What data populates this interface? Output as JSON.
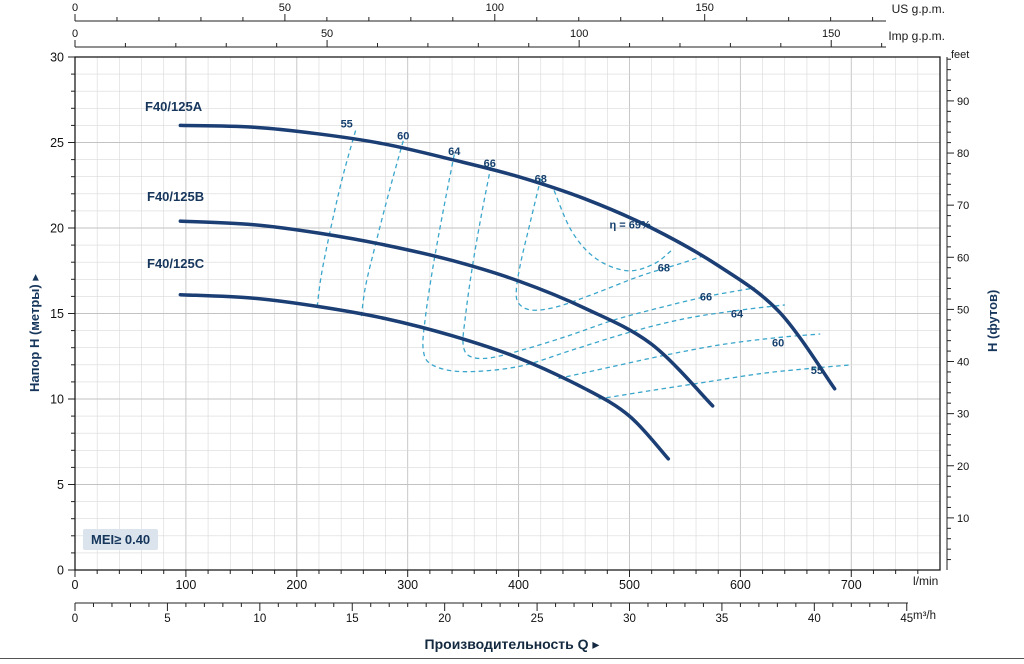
{
  "chart_data": {
    "type": "line",
    "title": "",
    "xlabel": "Производительность Q ▸",
    "mei_label": "MEI≥ 0.40",
    "x_unit": "l/min",
    "y_unit": "m",
    "x_range": [
      0,
      780
    ],
    "y_range": [
      0,
      30
    ],
    "grid": "on",
    "axes": {
      "us_gpm": {
        "unit": "US g.p.m.",
        "ticks": [
          0,
          50,
          100,
          150
        ],
        "minor_step": 10,
        "to_lmin": 3.7854
      },
      "imp_gpm": {
        "unit": "Imp g.p.m.",
        "ticks": [
          0,
          50,
          100,
          150
        ],
        "minor_step": 10,
        "to_lmin": 4.5461
      },
      "lmin": {
        "unit": "l/min",
        "ticks": [
          0,
          100,
          200,
          300,
          400,
          500,
          600,
          700
        ],
        "minor_step": 20
      },
      "m3h": {
        "unit": "m³/h",
        "ticks": [
          0,
          5,
          10,
          15,
          20,
          25,
          30,
          35,
          40,
          45
        ],
        "minor_step": 1,
        "to_lmin": 16.667
      },
      "h_m": {
        "title": "Напор H (метры) ▸",
        "ticks": [
          0,
          5,
          10,
          15,
          20,
          25,
          30
        ],
        "minor_step": 1
      },
      "h_ft": {
        "title": "H (футов)",
        "unit": "feet",
        "ticks": [
          10,
          20,
          30,
          40,
          50,
          60,
          70,
          80,
          90
        ],
        "minor_step": 2,
        "to_m": 0.3048
      }
    },
    "series": [
      {
        "name": "F40/125A",
        "points": [
          [
            95,
            26.0
          ],
          [
            160,
            25.9
          ],
          [
            220,
            25.5
          ],
          [
            280,
            24.9
          ],
          [
            340,
            24.0
          ],
          [
            400,
            23.0
          ],
          [
            460,
            21.7
          ],
          [
            520,
            20.0
          ],
          [
            580,
            17.8
          ],
          [
            635,
            15.1
          ],
          [
            685,
            10.6
          ]
        ]
      },
      {
        "name": "F40/125B",
        "points": [
          [
            95,
            20.4
          ],
          [
            160,
            20.2
          ],
          [
            220,
            19.7
          ],
          [
            280,
            19.0
          ],
          [
            340,
            18.1
          ],
          [
            400,
            16.9
          ],
          [
            460,
            15.3
          ],
          [
            520,
            13.2
          ],
          [
            575,
            9.6
          ]
        ]
      },
      {
        "name": "F40/125C",
        "points": [
          [
            95,
            16.1
          ],
          [
            160,
            15.9
          ],
          [
            220,
            15.4
          ],
          [
            280,
            14.7
          ],
          [
            340,
            13.7
          ],
          [
            400,
            12.4
          ],
          [
            460,
            10.6
          ],
          [
            500,
            9.0
          ],
          [
            535,
            6.5
          ]
        ]
      }
    ],
    "efficiency_curves": [
      {
        "value": 55,
        "branch": "left",
        "points": [
          [
            253,
            25.7
          ],
          [
            241,
            22.9
          ],
          [
            230,
            19.8
          ],
          [
            222,
            17.2
          ],
          [
            218,
            15.2
          ]
        ]
      },
      {
        "value": 60,
        "branch": "left",
        "points": [
          [
            296,
            25.1
          ],
          [
            284,
            22.3
          ],
          [
            272,
            19.3
          ],
          [
            262,
            16.6
          ],
          [
            258,
            14.7
          ]
        ]
      },
      {
        "value": 64,
        "branch": "full",
        "points": [
          [
            342,
            24.3
          ],
          [
            332,
            21.0
          ],
          [
            323,
            17.8
          ],
          [
            316,
            14.8
          ],
          [
            314,
            12.9
          ],
          [
            322,
            12.0
          ],
          [
            350,
            11.6
          ],
          [
            400,
            11.9
          ],
          [
            450,
            12.9
          ],
          [
            500,
            13.9
          ],
          [
            550,
            14.7
          ],
          [
            600,
            15.2
          ],
          [
            640,
            15.5
          ]
        ]
      },
      {
        "value": 66,
        "branch": "full",
        "points": [
          [
            375,
            23.6
          ],
          [
            366,
            20.6
          ],
          [
            358,
            17.6
          ],
          [
            352,
            14.8
          ],
          [
            350,
            13.2
          ],
          [
            356,
            12.5
          ],
          [
            374,
            12.4
          ],
          [
            405,
            12.9
          ],
          [
            445,
            13.7
          ],
          [
            485,
            14.6
          ],
          [
            525,
            15.3
          ],
          [
            570,
            16.0
          ],
          [
            613,
            16.5
          ]
        ]
      },
      {
        "value": 68,
        "branch": "full",
        "points": [
          [
            420,
            22.9
          ],
          [
            410,
            20.2
          ],
          [
            402,
            18.0
          ],
          [
            398,
            16.4
          ],
          [
            400,
            15.6
          ],
          [
            412,
            15.2
          ],
          [
            435,
            15.4
          ],
          [
            470,
            16.2
          ],
          [
            510,
            17.2
          ],
          [
            545,
            17.9
          ],
          [
            568,
            18.4
          ]
        ]
      },
      {
        "value": 69,
        "branch": "loop",
        "points": [
          [
            432,
            22.2
          ],
          [
            448,
            19.8
          ],
          [
            470,
            18.2
          ],
          [
            498,
            17.5
          ],
          [
            522,
            17.9
          ],
          [
            538,
            18.7
          ]
        ]
      },
      {
        "value": 60,
        "branch": "right",
        "points": [
          [
            436,
            11.2
          ],
          [
            485,
            11.9
          ],
          [
            535,
            12.6
          ],
          [
            585,
            13.2
          ],
          [
            635,
            13.6
          ],
          [
            672,
            13.8
          ]
        ]
      },
      {
        "value": 55,
        "branch": "right",
        "points": [
          [
            472,
            10.0
          ],
          [
            520,
            10.5
          ],
          [
            570,
            11.0
          ],
          [
            620,
            11.5
          ],
          [
            665,
            11.8
          ],
          [
            700,
            12.0
          ]
        ]
      }
    ],
    "efficiency_labels": [
      {
        "text": "55",
        "q": 245,
        "h": 26.1
      },
      {
        "text": "60",
        "q": 296,
        "h": 25.4
      },
      {
        "text": "64",
        "q": 342,
        "h": 24.5
      },
      {
        "text": "66",
        "q": 374,
        "h": 23.8
      },
      {
        "text": "68",
        "q": 420,
        "h": 22.9
      },
      {
        "text": "η = 69%",
        "q": 482,
        "h": 20.2,
        "anchor": "start"
      },
      {
        "text": "68",
        "q": 531,
        "h": 17.7
      },
      {
        "text": "66",
        "q": 569,
        "h": 16.0
      },
      {
        "text": "64",
        "q": 597,
        "h": 15.0
      },
      {
        "text": "60",
        "q": 634,
        "h": 13.3
      },
      {
        "text": "55",
        "q": 669,
        "h": 11.7
      }
    ],
    "colors": {
      "curve": "#1b3e74",
      "efficiency": "#3aa6cb",
      "grid_minor": "#d9d9d9",
      "grid_major": "#c2c2c2",
      "axis": "#222222",
      "label": "#15406e",
      "mei_bg": "#dbe4ed"
    }
  }
}
